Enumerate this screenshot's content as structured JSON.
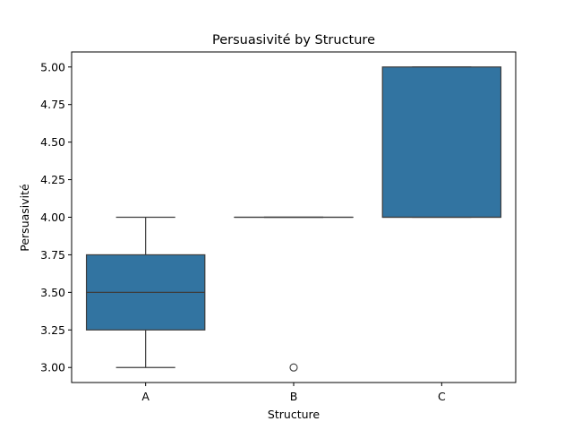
{
  "chart_data": {
    "type": "box",
    "title": "Persuasivité by Structure",
    "xlabel": "Structure",
    "ylabel": "Persuasivité",
    "categories": [
      "A",
      "B",
      "C"
    ],
    "ylim": [
      2.9,
      5.1
    ],
    "yticks": [
      3.0,
      3.25,
      3.5,
      3.75,
      4.0,
      4.25,
      4.5,
      4.75,
      5.0
    ],
    "ytick_labels": [
      "3.00",
      "3.25",
      "3.50",
      "3.75",
      "4.00",
      "4.25",
      "4.50",
      "4.75",
      "5.00"
    ],
    "box_color": "#3274a1",
    "line_color": "#3d3d3d",
    "boxes": [
      {
        "category": "A",
        "whisker_low": 3.0,
        "q1": 3.25,
        "median": 3.5,
        "q3": 3.75,
        "whisker_high": 4.0,
        "outliers": []
      },
      {
        "category": "B",
        "whisker_low": 4.0,
        "q1": 4.0,
        "median": 4.0,
        "q3": 4.0,
        "whisker_high": 4.0,
        "outliers": [
          3.0
        ]
      },
      {
        "category": "C",
        "whisker_low": 4.0,
        "q1": 4.0,
        "median": 4.0,
        "q3": 5.0,
        "whisker_high": 5.0,
        "outliers": []
      }
    ]
  }
}
